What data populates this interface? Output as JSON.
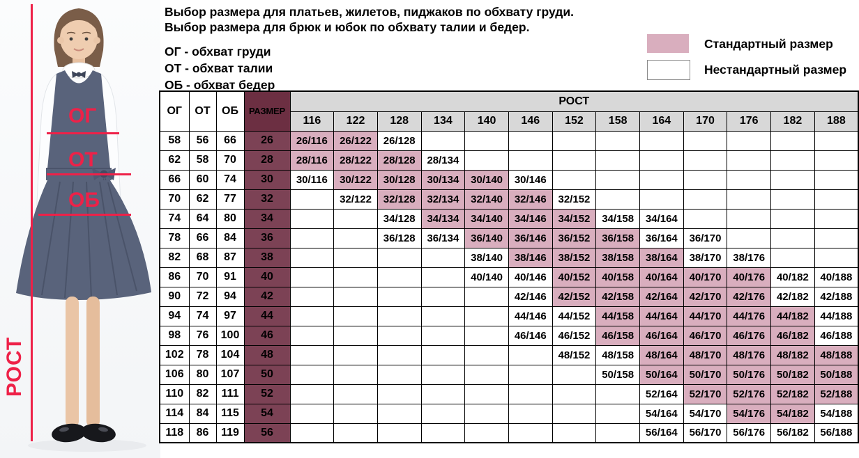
{
  "header": {
    "title_lines": [
      "Выбор размера для платьев, жилетов, пиджаков по обхвату груди.",
      "Выбор размера для брюк и юбок по обхвату талии и бедер."
    ],
    "abbreviations": [
      "ОГ - обхват груди",
      "ОТ - обхват талии",
      "ОБ - обхват бедер"
    ]
  },
  "legend": {
    "standard_label": "Стандартный размер",
    "nonstandard_label": "Нестандартный размер"
  },
  "photo": {
    "chest_label": "ОГ",
    "waist_label": "ОТ",
    "hips_label": "ОБ",
    "height_label": "РОСТ"
  },
  "colors": {
    "standard_pink": "#d9aebe",
    "size_maroon": "#7c4255",
    "header_maroon": "#6c2f42",
    "header_gray": "#d8d8d8",
    "annotation_red": "#ee2148"
  },
  "table": {
    "corner_headers": [
      "ОГ",
      "ОТ",
      "ОБ",
      "РАЗМЕР"
    ],
    "rost_header": "РОСТ",
    "heights": [
      116,
      122,
      128,
      134,
      140,
      146,
      152,
      158,
      164,
      170,
      176,
      182,
      188
    ],
    "rows": [
      {
        "og": "58",
        "ot": "56",
        "ob": "66",
        "size": "26",
        "cells": [
          "s",
          "s",
          "n",
          "",
          "",
          "",
          "",
          "",
          "",
          "",
          "",
          "",
          ""
        ]
      },
      {
        "og": "62",
        "ot": "58",
        "ob": "70",
        "size": "28",
        "cells": [
          "s",
          "s",
          "s",
          "n",
          "",
          "",
          "",
          "",
          "",
          "",
          "",
          "",
          ""
        ]
      },
      {
        "og": "66",
        "ot": "60",
        "ob": "74",
        "size": "30",
        "cells": [
          "n",
          "s",
          "s",
          "s",
          "s",
          "n",
          "",
          "",
          "",
          "",
          "",
          "",
          ""
        ]
      },
      {
        "og": "70",
        "ot": "62",
        "ob": "77",
        "size": "32",
        "cells": [
          "",
          "n",
          "s",
          "s",
          "s",
          "s",
          "n",
          "",
          "",
          "",
          "",
          "",
          ""
        ]
      },
      {
        "og": "74",
        "ot": "64",
        "ob": "80",
        "size": "34",
        "cells": [
          "",
          "",
          "n",
          "s",
          "s",
          "s",
          "s",
          "n",
          "n",
          "",
          "",
          "",
          ""
        ]
      },
      {
        "og": "78",
        "ot": "66",
        "ob": "84",
        "size": "36",
        "cells": [
          "",
          "",
          "n",
          "n",
          "s",
          "s",
          "s",
          "s",
          "n",
          "n",
          "",
          "",
          ""
        ]
      },
      {
        "og": "82",
        "ot": "68",
        "ob": "87",
        "size": "38",
        "cells": [
          "",
          "",
          "",
          "",
          "n",
          "s",
          "s",
          "s",
          "s",
          "n",
          "n",
          "",
          ""
        ]
      },
      {
        "og": "86",
        "ot": "70",
        "ob": "91",
        "size": "40",
        "cells": [
          "",
          "",
          "",
          "",
          "n",
          "n",
          "s",
          "s",
          "s",
          "s",
          "s",
          "n",
          "n"
        ]
      },
      {
        "og": "90",
        "ot": "72",
        "ob": "94",
        "size": "42",
        "cells": [
          "",
          "",
          "",
          "",
          "",
          "n",
          "s",
          "s",
          "s",
          "s",
          "s",
          "n",
          "n"
        ]
      },
      {
        "og": "94",
        "ot": "74",
        "ob": "97",
        "size": "44",
        "cells": [
          "",
          "",
          "",
          "",
          "",
          "n",
          "n",
          "s",
          "s",
          "s",
          "s",
          "s",
          "n"
        ]
      },
      {
        "og": "98",
        "ot": "76",
        "ob": "100",
        "size": "46",
        "cells": [
          "",
          "",
          "",
          "",
          "",
          "n",
          "n",
          "s",
          "s",
          "s",
          "s",
          "s",
          "n"
        ]
      },
      {
        "og": "102",
        "ot": "78",
        "ob": "104",
        "size": "48",
        "cells": [
          "",
          "",
          "",
          "",
          "",
          "",
          "n",
          "n",
          "s",
          "s",
          "s",
          "s",
          "s"
        ]
      },
      {
        "og": "106",
        "ot": "80",
        "ob": "107",
        "size": "50",
        "cells": [
          "",
          "",
          "",
          "",
          "",
          "",
          "",
          "n",
          "s",
          "s",
          "s",
          "s",
          "s"
        ]
      },
      {
        "og": "110",
        "ot": "82",
        "ob": "111",
        "size": "52",
        "cells": [
          "",
          "",
          "",
          "",
          "",
          "",
          "",
          "",
          "n",
          "s",
          "s",
          "s",
          "s"
        ]
      },
      {
        "og": "114",
        "ot": "84",
        "ob": "115",
        "size": "54",
        "cells": [
          "",
          "",
          "",
          "",
          "",
          "",
          "",
          "",
          "n",
          "n",
          "s",
          "s",
          "n"
        ]
      },
      {
        "og": "118",
        "ot": "86",
        "ob": "119",
        "size": "56",
        "cells": [
          "",
          "",
          "",
          "",
          "",
          "",
          "",
          "",
          "n",
          "n",
          "n",
          "n",
          "n"
        ]
      }
    ]
  }
}
